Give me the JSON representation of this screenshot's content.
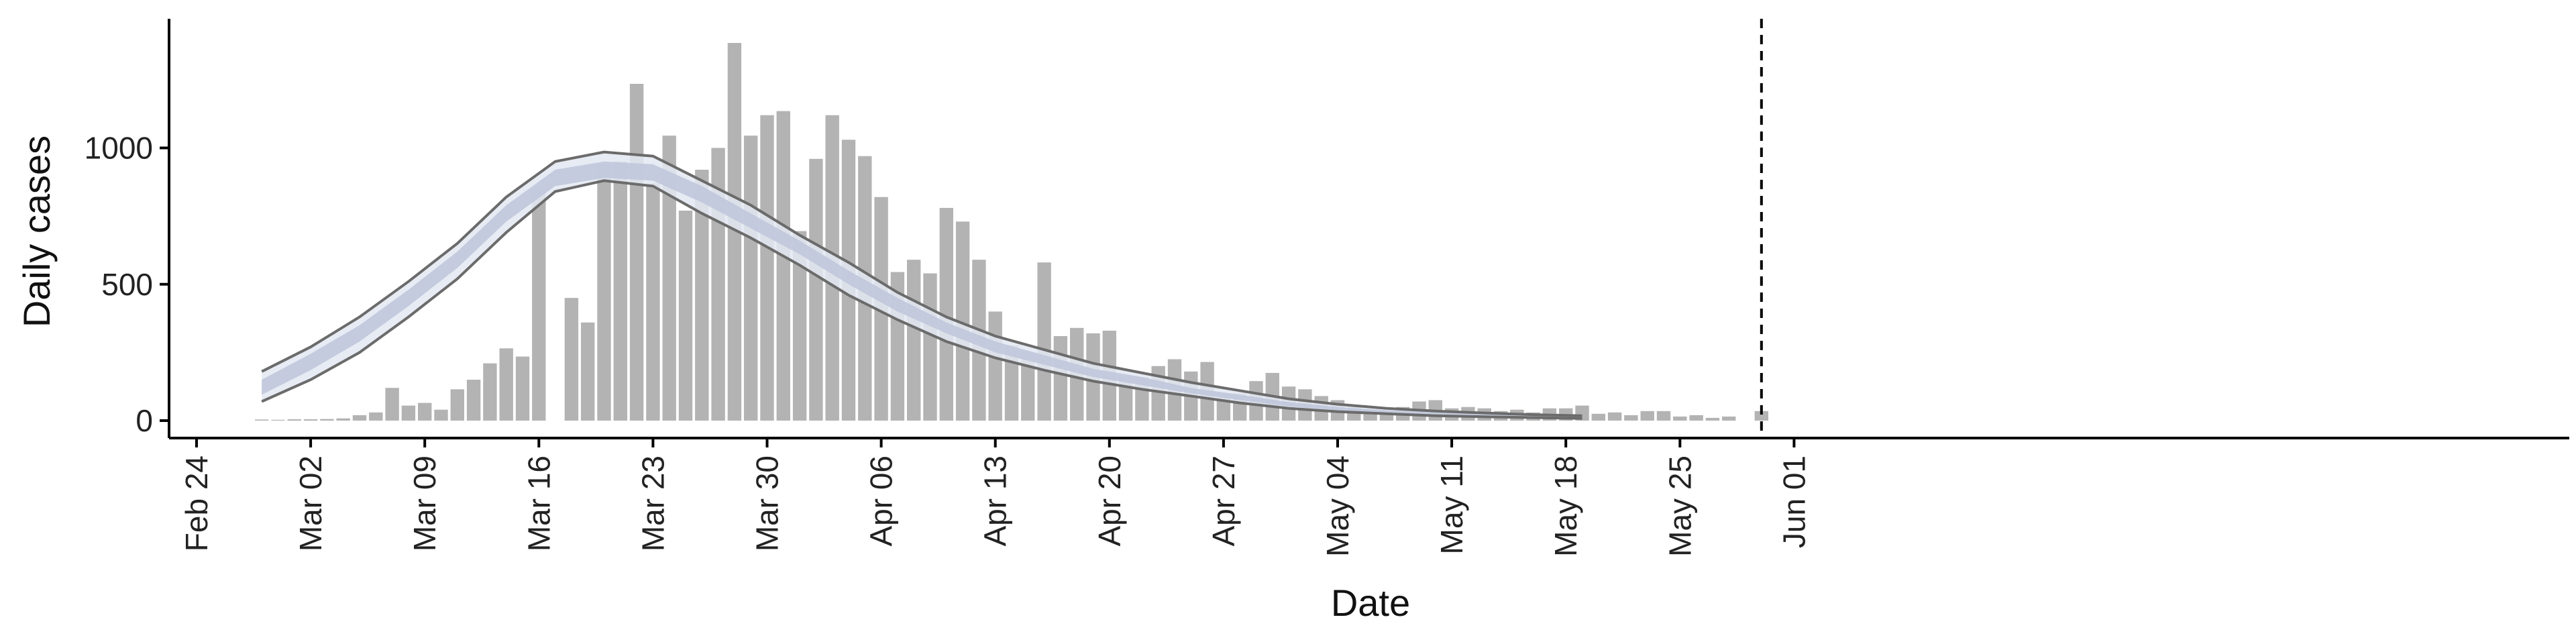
{
  "chart_data": {
    "type": "bar",
    "xlabel": "Date",
    "ylabel": "Daily cases",
    "xlim": [
      "2020-02-23",
      "2020-06-02"
    ],
    "ylim": [
      -60,
      1470
    ],
    "x_ticks": [
      {
        "date": "2020-02-24",
        "label": "Feb 24"
      },
      {
        "date": "2020-03-02",
        "label": "Mar 02"
      },
      {
        "date": "2020-03-09",
        "label": "Mar 09"
      },
      {
        "date": "2020-03-16",
        "label": "Mar 16"
      },
      {
        "date": "2020-03-23",
        "label": "Mar 23"
      },
      {
        "date": "2020-03-30",
        "label": "Mar 30"
      },
      {
        "date": "2020-04-06",
        "label": "Apr 06"
      },
      {
        "date": "2020-04-13",
        "label": "Apr 13"
      },
      {
        "date": "2020-04-20",
        "label": "Apr 20"
      },
      {
        "date": "2020-04-27",
        "label": "Apr 27"
      },
      {
        "date": "2020-05-04",
        "label": "May 04"
      },
      {
        "date": "2020-05-11",
        "label": "May 11"
      },
      {
        "date": "2020-05-18",
        "label": "May 18"
      },
      {
        "date": "2020-05-25",
        "label": "May 25"
      },
      {
        "date": "2020-06-01",
        "label": "Jun 01"
      }
    ],
    "y_ticks": [
      0,
      500,
      1000
    ],
    "bars": {
      "dates": [
        "2020-02-28",
        "2020-02-29",
        "2020-03-01",
        "2020-03-02",
        "2020-03-03",
        "2020-03-04",
        "2020-03-05",
        "2020-03-06",
        "2020-03-07",
        "2020-03-08",
        "2020-03-09",
        "2020-03-10",
        "2020-03-11",
        "2020-03-12",
        "2020-03-13",
        "2020-03-14",
        "2020-03-15",
        "2020-03-16",
        "2020-03-17",
        "2020-03-18",
        "2020-03-19",
        "2020-03-20",
        "2020-03-21",
        "2020-03-22",
        "2020-03-23",
        "2020-03-24",
        "2020-03-25",
        "2020-03-26",
        "2020-03-27",
        "2020-03-28",
        "2020-03-29",
        "2020-03-30",
        "2020-03-31",
        "2020-04-01",
        "2020-04-02",
        "2020-04-03",
        "2020-04-04",
        "2020-04-05",
        "2020-04-06",
        "2020-04-07",
        "2020-04-08",
        "2020-04-09",
        "2020-04-10",
        "2020-04-11",
        "2020-04-12",
        "2020-04-13",
        "2020-04-14",
        "2020-04-15",
        "2020-04-16",
        "2020-04-17",
        "2020-04-18",
        "2020-04-19",
        "2020-04-20",
        "2020-04-21",
        "2020-04-22",
        "2020-04-23",
        "2020-04-24",
        "2020-04-25",
        "2020-04-26",
        "2020-04-27",
        "2020-04-28",
        "2020-04-29",
        "2020-04-30",
        "2020-05-01",
        "2020-05-02",
        "2020-05-03",
        "2020-05-04",
        "2020-05-05",
        "2020-05-06",
        "2020-05-07",
        "2020-05-08",
        "2020-05-09",
        "2020-05-10",
        "2020-05-11",
        "2020-05-12",
        "2020-05-13",
        "2020-05-14",
        "2020-05-15",
        "2020-05-16",
        "2020-05-17",
        "2020-05-18",
        "2020-05-19",
        "2020-05-20",
        "2020-05-21",
        "2020-05-22",
        "2020-05-23",
        "2020-05-24",
        "2020-05-25",
        "2020-05-26",
        "2020-05-27",
        "2020-05-28",
        "2020-05-29",
        "2020-05-30"
      ],
      "values": [
        4,
        3,
        5,
        5,
        6,
        8,
        20,
        30,
        120,
        55,
        65,
        40,
        115,
        150,
        210,
        265,
        235,
        845,
        0,
        450,
        360,
        940,
        950,
        1235,
        870,
        1045,
        770,
        920,
        1000,
        1385,
        1045,
        1120,
        1135,
        695,
        960,
        1120,
        1030,
        970,
        820,
        545,
        590,
        540,
        780,
        730,
        590,
        400,
        275,
        250,
        580,
        310,
        340,
        320,
        330,
        165,
        160,
        200,
        225,
        180,
        215,
        100,
        100,
        145,
        175,
        125,
        115,
        90,
        75,
        50,
        40,
        35,
        50,
        70,
        75,
        45,
        50,
        45,
        35,
        40,
        30,
        45,
        45,
        55,
        25,
        30,
        20,
        35,
        35,
        15,
        20,
        10,
        15,
        0,
        35
      ]
    },
    "fit": {
      "dates": [
        "2020-02-28",
        "2020-03-02",
        "2020-03-05",
        "2020-03-08",
        "2020-03-11",
        "2020-03-14",
        "2020-03-17",
        "2020-03-20",
        "2020-03-23",
        "2020-03-26",
        "2020-03-29",
        "2020-04-01",
        "2020-04-04",
        "2020-04-07",
        "2020-04-10",
        "2020-04-13",
        "2020-04-16",
        "2020-04-19",
        "2020-04-22",
        "2020-04-25",
        "2020-04-28",
        "2020-05-01",
        "2020-05-04",
        "2020-05-07",
        "2020-05-10",
        "2020-05-13",
        "2020-05-16",
        "2020-05-19"
      ],
      "upper": [
        180,
        270,
        380,
        510,
        650,
        820,
        950,
        985,
        970,
        880,
        790,
        680,
        580,
        470,
        380,
        310,
        260,
        210,
        175,
        140,
        110,
        80,
        60,
        45,
        35,
        28,
        22,
        18
      ],
      "upper_inner": [
        150,
        245,
        350,
        480,
        620,
        790,
        920,
        950,
        940,
        860,
        760,
        660,
        550,
        450,
        360,
        290,
        240,
        190,
        160,
        120,
        95,
        68,
        50,
        38,
        30,
        24,
        19,
        15
      ],
      "median": [
        120,
        215,
        320,
        450,
        590,
        760,
        890,
        920,
        910,
        830,
        735,
        635,
        525,
        425,
        340,
        270,
        220,
        175,
        145,
        110,
        85,
        60,
        43,
        32,
        25,
        20,
        16,
        12
      ],
      "lower_inner": [
        95,
        185,
        290,
        420,
        560,
        730,
        860,
        890,
        880,
        800,
        705,
        610,
        500,
        400,
        320,
        250,
        205,
        160,
        130,
        100,
        75,
        52,
        38,
        28,
        22,
        17,
        13,
        10
      ],
      "lower": [
        70,
        150,
        250,
        380,
        520,
        690,
        840,
        880,
        860,
        760,
        670,
        570,
        460,
        370,
        290,
        230,
        185,
        145,
        115,
        90,
        65,
        45,
        33,
        25,
        18,
        14,
        11,
        8
      ]
    },
    "vline_date": "2020-05-30",
    "colors": {
      "bar": "#b3b3b3",
      "ci_outer": "#e3e7f1",
      "ci_inner": "#c0c8dc",
      "bound_line": "#6b6b6b",
      "axis": "#000000"
    }
  }
}
